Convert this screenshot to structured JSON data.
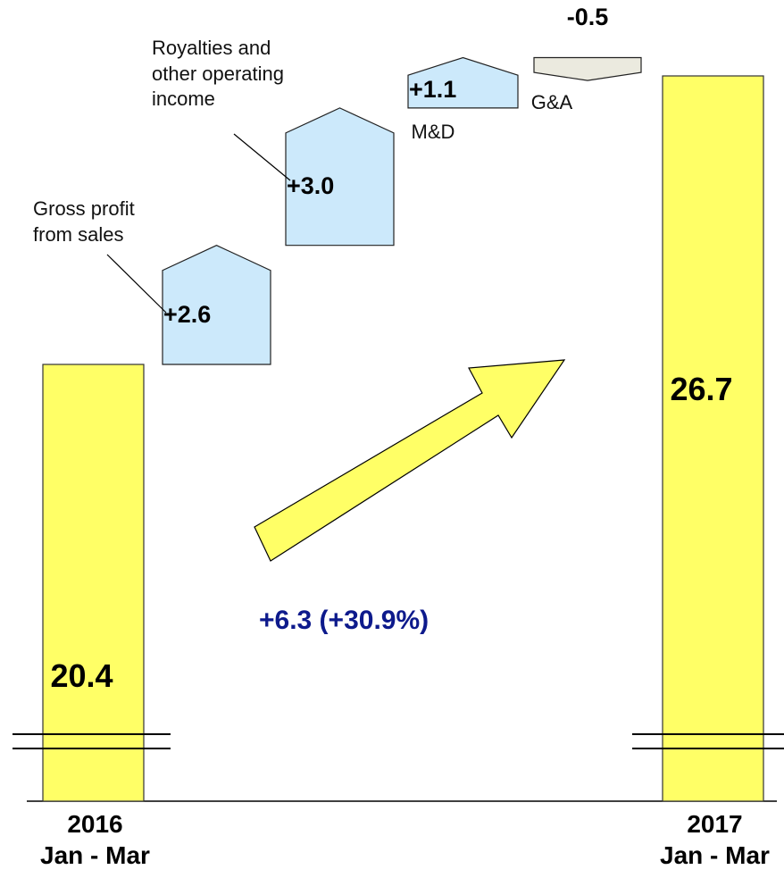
{
  "chart_data": {
    "type": "waterfall",
    "categories": [
      "2016\nJan - Mar",
      "Gross profit\nfrom sales",
      "Royalties and\nother operating\nincome",
      "M&D",
      "G&A",
      "2017\nJan - Mar"
    ],
    "values": [
      20.4,
      2.6,
      3.0,
      1.1,
      -0.5,
      26.7
    ],
    "value_labels": [
      "20.4",
      "+2.6",
      "+3.0",
      "+1.1",
      "-0.5",
      "26.7"
    ],
    "total_color": "#ffff66",
    "increase_color": "#cce9fb",
    "decrease_color": "#ebeadf",
    "arrow_color": "#ffff66",
    "annotation": "+6.3 (+30.9%)",
    "annotation_color": "#0d1a8c"
  }
}
